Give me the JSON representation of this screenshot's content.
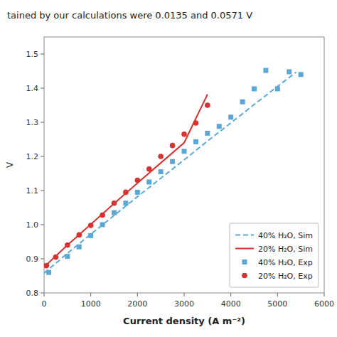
{
  "chart_data": {
    "type": "line",
    "title": "tained by our calculations were 0.0135 and 0.0571 V",
    "xlabel": "Current density (A m⁻²)",
    "ylabel": "V",
    "xlim": [
      0,
      6000
    ],
    "ylim": [
      0.8,
      1.55
    ],
    "xticks": [
      0,
      1000,
      2000,
      3000,
      4000,
      5000,
      6000
    ],
    "yticks": [
      0.8,
      0.9,
      {
        "value": 1.0,
        "label": "1.0"
      },
      1.1,
      1.2,
      1.3,
      1.4,
      1.5
    ],
    "grid": false,
    "legend": "lower right",
    "series": [
      {
        "name": "40% H₂O, Sim",
        "type": "line",
        "line_style": "dashed",
        "color": "#5ba8d6",
        "x": [
          0,
          500,
          1000,
          1500,
          2000,
          2500,
          3000,
          3500,
          4000,
          4500,
          5000,
          5400
        ],
        "values": [
          0.858,
          0.916,
          0.972,
          1.027,
          1.082,
          1.136,
          1.19,
          1.245,
          1.298,
          1.352,
          1.405,
          1.447
        ]
      },
      {
        "name": "20% H₂O, Sim",
        "type": "line",
        "line_style": "solid",
        "color": "#d93030",
        "x": [
          0,
          500,
          1000,
          1500,
          2000,
          2500,
          3000,
          3500
        ],
        "values": [
          0.876,
          0.94,
          1.001,
          1.062,
          1.122,
          1.181,
          1.24,
          1.382
        ]
      },
      {
        "name": "40% H₂O, Exp",
        "type": "scatter",
        "marker": "square",
        "color": "#5ba8d6",
        "x": [
          100,
          500,
          750,
          1000,
          1250,
          1500,
          1750,
          2000,
          2250,
          2500,
          2750,
          3000,
          3250,
          3500,
          3750,
          4000,
          4250,
          4500,
          4750,
          5000,
          5250,
          5500
        ],
        "values": [
          0.86,
          0.907,
          0.935,
          0.968,
          1.0,
          1.035,
          1.063,
          1.095,
          1.125,
          1.155,
          1.185,
          1.215,
          1.243,
          1.268,
          1.288,
          1.315,
          1.36,
          1.398,
          1.452,
          1.398,
          1.448,
          1.44
        ]
      },
      {
        "name": "20% H₂O, Exp",
        "type": "scatter",
        "marker": "circle",
        "color": "#d93030",
        "x": [
          50,
          250,
          500,
          750,
          1000,
          1250,
          1500,
          1750,
          2000,
          2250,
          2500,
          2750,
          3000,
          3250,
          3500
        ],
        "values": [
          0.88,
          0.905,
          0.94,
          0.97,
          0.998,
          1.028,
          1.063,
          1.095,
          1.13,
          1.163,
          1.2,
          1.232,
          1.265,
          1.298,
          1.35
        ]
      }
    ]
  }
}
